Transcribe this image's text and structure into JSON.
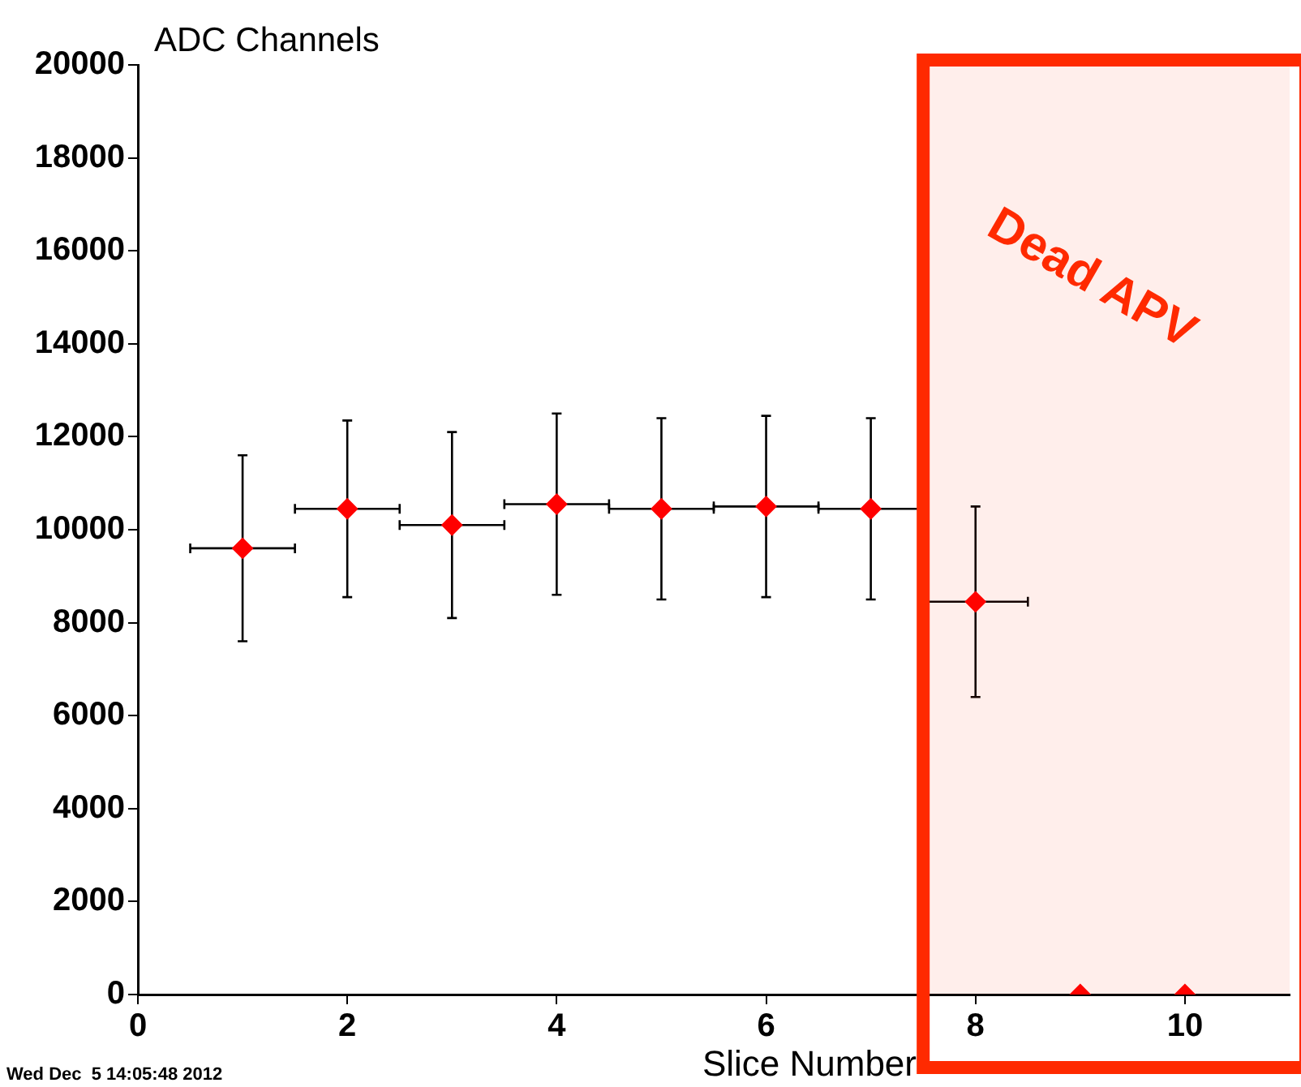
{
  "chart_data": {
    "type": "scatter",
    "xlabel": "Slice Number",
    "ylabel": "ADC Channels",
    "x": [
      1,
      2,
      3,
      4,
      5,
      6,
      7,
      8,
      9,
      10
    ],
    "series": [
      {
        "color": "#ff0000",
        "values": [
          9600,
          10450,
          10100,
          10550,
          10450,
          10500,
          10450,
          8450,
          0,
          0
        ],
        "errors": [
          2000,
          1900,
          2000,
          1950,
          1950,
          1950,
          1950,
          2050,
          null,
          null
        ],
        "xerrors": [
          0.5,
          0.5,
          0.5,
          0.5,
          0.5,
          0.5,
          0.5,
          0.5,
          null,
          null
        ]
      }
    ],
    "xlim": [
      0,
      11
    ],
    "xticks": [
      0,
      2,
      4,
      6,
      8,
      10
    ],
    "ylim": [
      0,
      20000
    ],
    "yticks": [
      0,
      2000,
      4000,
      6000,
      8000,
      10000,
      12000,
      14000,
      16000,
      18000,
      20000
    ],
    "grid": false,
    "legend": false,
    "marker": "diamond",
    "bands": [
      {
        "axis": "x",
        "from": 7.5,
        "to": 11,
        "label": "Dead APV",
        "color": "#ff2a00"
      }
    ],
    "annotations": [
      "Wed Dec  5 14:05:48 2012"
    ]
  }
}
